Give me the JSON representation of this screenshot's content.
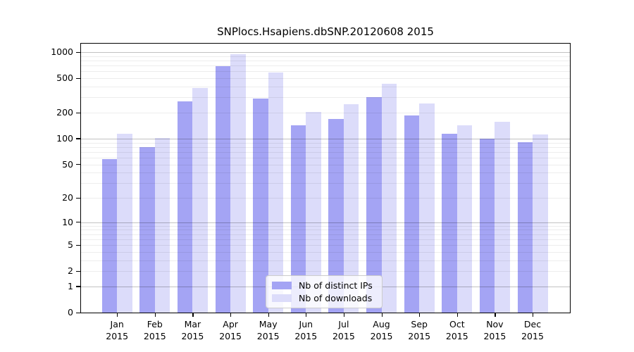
{
  "chart_data": {
    "type": "bar",
    "title": "SNPlocs.Hsapiens.dbSNP.20120608 2015",
    "year": "2015",
    "months": [
      "Jan",
      "Feb",
      "Mar",
      "Apr",
      "May",
      "Jun",
      "Jul",
      "Aug",
      "Sep",
      "Oct",
      "Nov",
      "Dec"
    ],
    "series": [
      {
        "name": "Nb of distinct IPs",
        "color": "#a4a4f4",
        "values": [
          58,
          80,
          270,
          685,
          290,
          142,
          169,
          300,
          186,
          114,
          100,
          91
        ]
      },
      {
        "name": "Nb of downloads",
        "color": "#dcdcfa",
        "values": [
          113,
          102,
          385,
          940,
          585,
          203,
          250,
          430,
          254,
          142,
          156,
          112
        ]
      }
    ],
    "y_ticks": [
      0,
      1,
      2,
      5,
      10,
      20,
      50,
      100,
      200,
      500,
      1000
    ],
    "scale": "log1p",
    "ylim": [
      0,
      1250
    ],
    "grid": {
      "major": [
        1,
        10,
        100,
        1000
      ],
      "minor": [
        2,
        3,
        4,
        5,
        6,
        7,
        8,
        9,
        20,
        30,
        40,
        50,
        60,
        70,
        80,
        90,
        200,
        300,
        400,
        500,
        600,
        700,
        800,
        900
      ]
    },
    "legend_position": "lower-center",
    "grid_on": true
  }
}
